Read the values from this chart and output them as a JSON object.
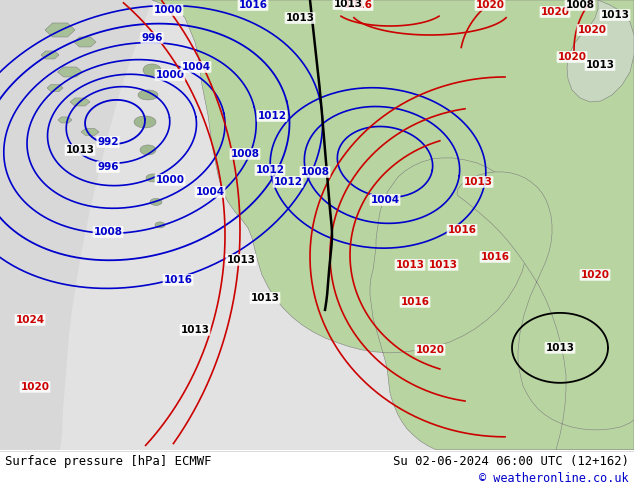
{
  "title_left": "Surface pressure [hPa] ECMWF",
  "title_right": "Su 02-06-2024 06:00 UTC (12+162)",
  "copyright": "© weatheronline.co.uk",
  "fig_width": 6.34,
  "fig_height": 4.9,
  "dpi": 100,
  "footer_color": "#000000",
  "copyright_color": "#0000cc",
  "ocean_west": "#e0e0e0",
  "ocean_center": "#e8ede8",
  "land_green": "#b8d4a0",
  "land_dark_green": "#90b878",
  "contour_blue": "#0000cc",
  "contour_red": "#cc0000",
  "contour_black": "#000000"
}
